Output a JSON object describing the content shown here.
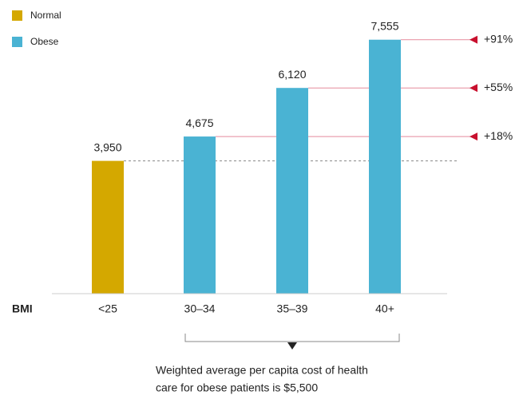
{
  "chart_data": {
    "type": "bar",
    "x_label": "BMI",
    "categories": [
      "<25",
      "30–34",
      "35–39",
      "40+"
    ],
    "series": [
      {
        "name": "Normal",
        "color": "#d4a800",
        "values": [
          3950,
          null,
          null,
          null
        ],
        "value_labels": [
          "3,950",
          null,
          null,
          null
        ]
      },
      {
        "name": "Obese",
        "color": "#4ab3d3",
        "values": [
          null,
          4675,
          6120,
          7555
        ],
        "value_labels": [
          null,
          "4,675",
          "6,120",
          "7,555"
        ],
        "change_labels": [
          null,
          "+18%",
          "+55%",
          "+91%"
        ]
      }
    ],
    "ylim": [
      0,
      8000
    ],
    "legend": "top-left",
    "note": [
      "Weighted average per capita cost of health",
      "care for obese patients is $5,500"
    ]
  }
}
